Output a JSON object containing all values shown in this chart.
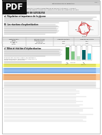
{
  "bg_color": "#ffffff",
  "pdf_bg": "#111111",
  "header_bar_color": "#d0d0d0",
  "section_bar_color": "#d8d8d8",
  "table_header_bg": "#e0e0e0",
  "table_border": "#aaaaaa",
  "text_dark": "#222222",
  "text_body": "#555555",
  "text_light": "#888888",
  "highlight_yellow": "#ffff88",
  "highlight_blue": "#bbddff",
  "highlight_orange": "#ffcc99",
  "green1": "#2e7d32",
  "green2": "#81c784",
  "green3": "#c8e6c9",
  "teal1": "#006064",
  "teal2": "#4dd0e1",
  "cycle_red": "#cc3333",
  "page_shadow": "#cccccc"
}
